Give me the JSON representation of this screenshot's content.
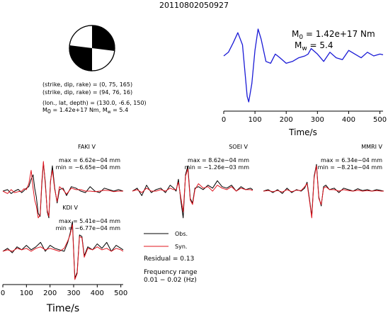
{
  "event_id": "20110802050927",
  "mechanism": {
    "plane1": "(strike, dip, rake) = (0, 75, 165)",
    "plane2": "(strike, dip, rake) = (94, 76, 16)",
    "location": "(lon., lat, depth) = (130.0, -6.6, 150)",
    "moment_main": "M",
    "moment_sub": "0",
    "moment_rest": " = 1.42e+17 Nm, M",
    "mw_sub": "w",
    "mw_rest": " = 5.4"
  },
  "colors": {
    "observed": "#000000",
    "synthetic": "#e0141e",
    "stf": "#1a1ad6"
  },
  "chart_data": [
    {
      "type": "line",
      "name": "source time function",
      "xlabel": "Time/s",
      "xlim": [
        0,
        510
      ],
      "xticks": [
        0,
        100,
        200,
        300,
        400,
        500
      ],
      "annot_m0_main": "M",
      "annot_m0_sub": "0",
      "annot_m0_rest": " = 1.42e+17 Nm",
      "annot_mw_main": "M",
      "annot_mw_sub": "w",
      "annot_mw_rest": " = 5.4",
      "x": [
        0,
        15,
        30,
        45,
        60,
        75,
        80,
        90,
        100,
        110,
        120,
        135,
        150,
        165,
        180,
        200,
        220,
        240,
        260,
        270,
        280,
        300,
        320,
        340,
        360,
        380,
        400,
        420,
        440,
        460,
        480,
        500,
        510
      ],
      "y": [
        0.25,
        0.35,
        0.6,
        0.88,
        0.55,
        -0.85,
        -1.0,
        -0.5,
        0.4,
        0.98,
        0.7,
        0.1,
        0.05,
        0.3,
        0.2,
        0.05,
        0.1,
        0.2,
        0.25,
        0.3,
        0.45,
        0.3,
        0.1,
        0.35,
        0.2,
        0.15,
        0.4,
        0.3,
        0.2,
        0.35,
        0.25,
        0.3,
        0.28
      ]
    },
    {
      "type": "line",
      "name": "FAKI V",
      "max_label": "max = 6.62e−04 mm",
      "min_label": "min = −6.65e−04 mm",
      "x": [
        0,
        20,
        35,
        50,
        65,
        80,
        90,
        100,
        110,
        120,
        128,
        135,
        142,
        150,
        158,
        165,
        172,
        180,
        188,
        195,
        202,
        210,
        220,
        230,
        240,
        255,
        270,
        290,
        310,
        330,
        350,
        370,
        390,
        410,
        430,
        450,
        470,
        490,
        510
      ],
      "obs": [
        0.0,
        0.05,
        -0.08,
        0.0,
        0.06,
        -0.05,
        0.02,
        0.1,
        0.15,
        0.4,
        0.55,
        0.1,
        -0.2,
        -0.75,
        -0.85,
        0.2,
        0.95,
        0.3,
        -0.7,
        -0.9,
        0.3,
        0.85,
        0.1,
        -0.4,
        0.05,
        0.1,
        -0.15,
        0.15,
        0.1,
        0.0,
        -0.05,
        0.15,
        0.0,
        -0.05,
        0.1,
        0.05,
        0.0,
        0.05,
        0.0
      ],
      "syn": [
        0.0,
        -0.08,
        0.05,
        -0.05,
        -0.02,
        0.0,
        0.08,
        0.05,
        0.25,
        0.7,
        0.1,
        -0.3,
        -0.5,
        -0.9,
        -0.8,
        0.3,
        1.0,
        0.2,
        -0.65,
        -0.85,
        0.35,
        0.7,
        0.05,
        -0.35,
        0.15,
        0.05,
        -0.1,
        0.1,
        0.05,
        0.05,
        0.0,
        0.0,
        -0.02,
        0.0,
        0.03,
        0.02,
        -0.02,
        0.0,
        0.0
      ]
    },
    {
      "type": "line",
      "name": "SOEI V",
      "max_label": "max = 8.62e−04 mm",
      "min_label": "min = −1.26e−03 mm",
      "x": [
        0,
        20,
        40,
        60,
        80,
        100,
        120,
        140,
        160,
        175,
        185,
        195,
        205,
        215,
        225,
        235,
        245,
        255,
        265,
        280,
        300,
        320,
        340,
        360,
        380,
        400,
        420,
        440,
        460,
        480,
        500,
        510
      ],
      "obs": [
        0.0,
        0.1,
        -0.15,
        0.2,
        -0.05,
        0.05,
        0.1,
        -0.05,
        0.2,
        0.1,
        0.0,
        0.4,
        -0.3,
        -0.9,
        0.55,
        0.85,
        -0.25,
        -0.4,
        0.1,
        0.15,
        0.05,
        0.2,
        0.1,
        0.35,
        0.15,
        0.1,
        0.2,
        0.0,
        0.15,
        0.05,
        0.1,
        0.05
      ],
      "syn": [
        0.0,
        0.05,
        -0.05,
        0.1,
        0.0,
        0.0,
        0.05,
        0.0,
        0.1,
        0.05,
        0.05,
        0.3,
        -0.2,
        -0.7,
        0.5,
        0.75,
        -0.3,
        -0.45,
        0.05,
        0.25,
        0.1,
        0.15,
        0.0,
        0.2,
        0.1,
        0.05,
        0.15,
        0.0,
        0.1,
        0.05,
        0.05,
        0.02
      ]
    },
    {
      "type": "line",
      "name": "MMRI V",
      "max_label": "max = 6.34e−04 mm",
      "min_label": "min = −8.21e−04 mm",
      "x": [
        0,
        20,
        40,
        60,
        80,
        100,
        120,
        140,
        160,
        175,
        185,
        195,
        205,
        215,
        225,
        235,
        245,
        255,
        265,
        280,
        300,
        320,
        340,
        360,
        380,
        400,
        420,
        440,
        460,
        480,
        500,
        510
      ],
      "obs": [
        0.0,
        0.05,
        -0.05,
        0.05,
        -0.08,
        0.1,
        -0.05,
        0.05,
        0.0,
        0.1,
        0.3,
        -0.25,
        -0.85,
        0.5,
        0.9,
        -0.2,
        -0.5,
        0.15,
        0.2,
        0.05,
        0.1,
        -0.05,
        0.1,
        0.05,
        0.0,
        0.08,
        0.02,
        0.05,
        0.0,
        0.05,
        0.02,
        0.0
      ],
      "syn": [
        0.0,
        0.02,
        -0.02,
        0.02,
        -0.03,
        0.05,
        -0.02,
        0.03,
        0.02,
        0.15,
        0.25,
        -0.3,
        -0.9,
        0.45,
        0.85,
        -0.25,
        -0.45,
        0.1,
        0.15,
        0.05,
        0.05,
        0.0,
        0.05,
        0.02,
        0.0,
        0.03,
        0.0,
        0.02,
        0.0,
        0.02,
        0.0,
        0.0
      ]
    },
    {
      "type": "line",
      "name": "KDI V",
      "max_label": "max = 5.41e−04 mm",
      "min_label": "min = −6.77e−04 mm",
      "xlabel": "Time/s",
      "xlim": [
        0,
        510
      ],
      "xticks": [
        0,
        100,
        200,
        300,
        400,
        500
      ],
      "x": [
        0,
        20,
        40,
        60,
        80,
        100,
        120,
        140,
        160,
        180,
        200,
        220,
        240,
        260,
        275,
        285,
        295,
        305,
        315,
        325,
        335,
        345,
        360,
        380,
        400,
        420,
        440,
        460,
        480,
        500,
        510
      ],
      "obs": [
        0.0,
        0.1,
        -0.05,
        0.15,
        0.05,
        0.2,
        0.05,
        0.15,
        0.3,
        0.0,
        0.2,
        0.1,
        0.05,
        0.0,
        0.3,
        0.6,
        1.0,
        -0.9,
        -0.7,
        0.55,
        0.5,
        -0.15,
        0.15,
        0.05,
        0.25,
        0.1,
        0.3,
        0.0,
        0.2,
        0.1,
        0.05
      ],
      "syn": [
        0.0,
        0.05,
        0.0,
        0.1,
        0.05,
        0.1,
        0.0,
        0.1,
        0.15,
        0.05,
        0.1,
        0.05,
        0.0,
        0.1,
        0.35,
        0.55,
        0.9,
        -0.95,
        -0.75,
        0.5,
        0.45,
        -0.2,
        0.1,
        0.05,
        0.15,
        0.05,
        0.1,
        0.0,
        0.1,
        0.05,
        0.0
      ]
    }
  ],
  "legend": {
    "obs": "Obs.",
    "syn": "Syn.",
    "residual": "Residual = 0.13",
    "freq_title": "Frequency range",
    "freq_value": "0.01 − 0.02 (Hz)"
  }
}
